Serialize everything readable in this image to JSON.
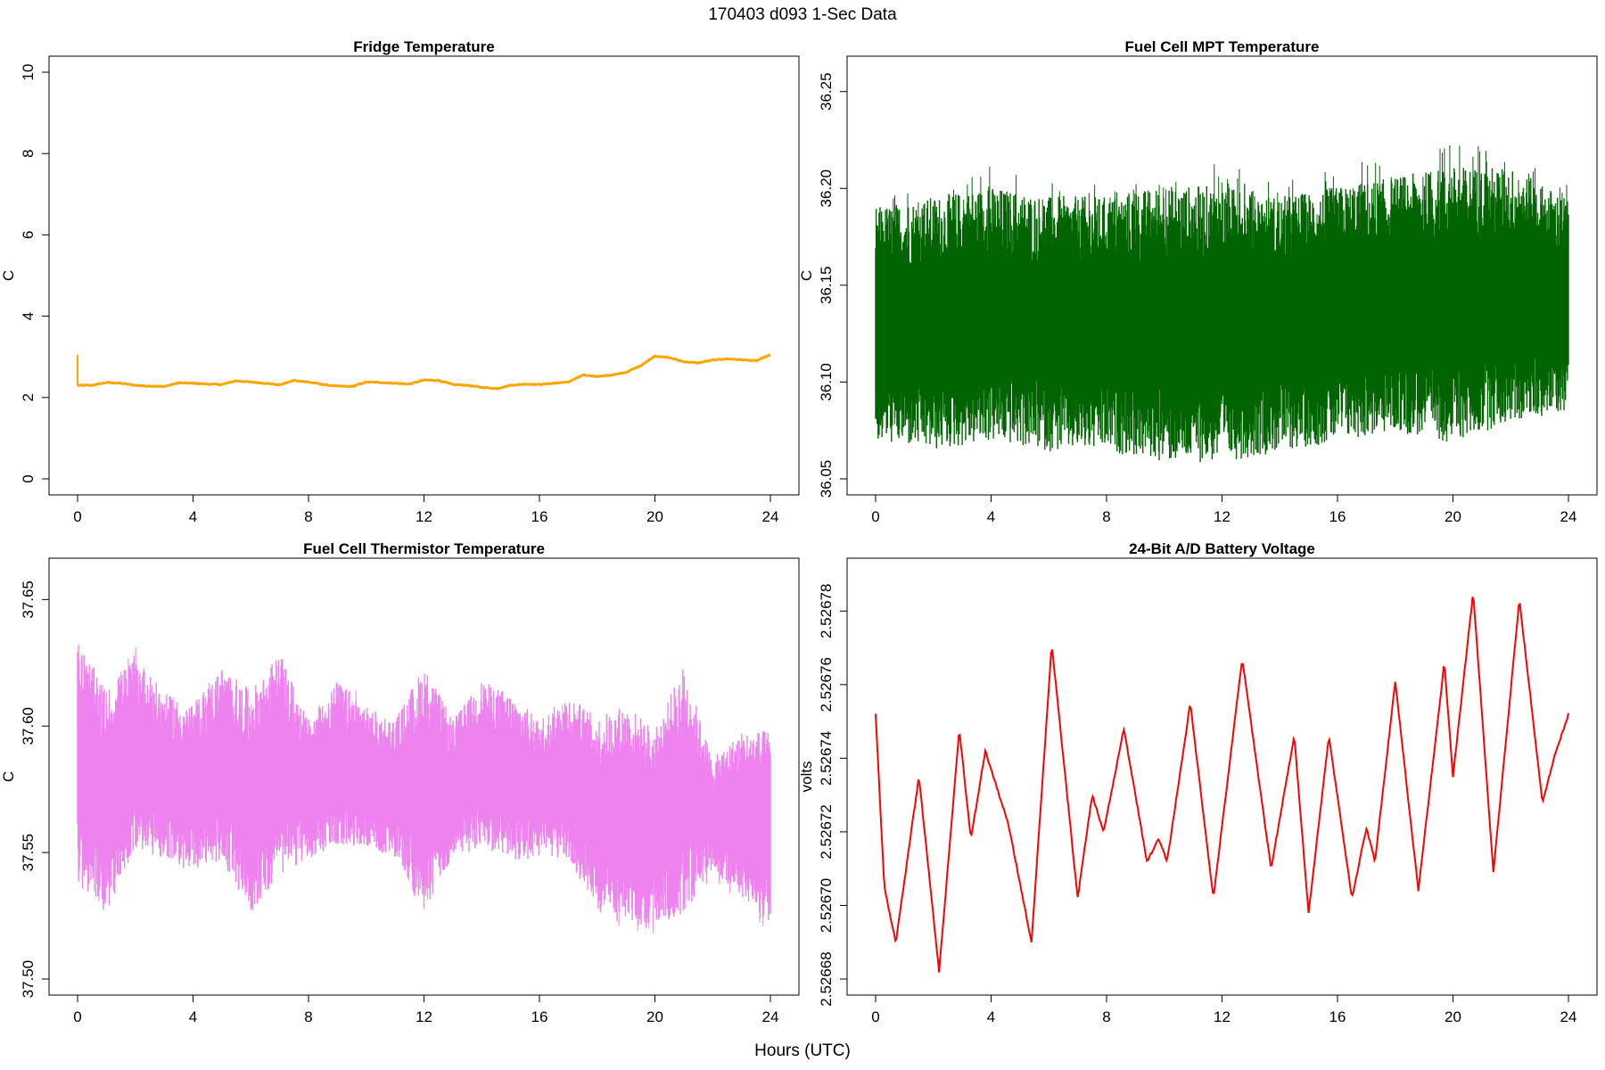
{
  "figure": {
    "title": "170403   d093   1-Sec Data",
    "xlabel": "Hours (UTC)"
  },
  "chart_data": [
    {
      "type": "line",
      "title": "Fridge Temperature",
      "xlabel": "",
      "ylabel": "C",
      "xlim": [
        0,
        24
      ],
      "ylim": [
        0,
        10
      ],
      "xticks": [
        "0",
        "4",
        "8",
        "12",
        "16",
        "20",
        "24"
      ],
      "yticks": [
        "0",
        "2",
        "4",
        "6",
        "8",
        "10"
      ],
      "color": "#ffa500",
      "series": [
        {
          "x": [
            0,
            0.5,
            1,
            1.5,
            2,
            2.5,
            3,
            3.5,
            4,
            4.5,
            5,
            5.5,
            6,
            6.5,
            7,
            7.5,
            8,
            8.5,
            9,
            9.5,
            10,
            10.5,
            11,
            11.5,
            12,
            12.5,
            13,
            13.5,
            14,
            14.5,
            15,
            15.5,
            16,
            16.5,
            17,
            17.5,
            18,
            18.5,
            19,
            19.5,
            20,
            20.5,
            21,
            21.5,
            22,
            22.5,
            23,
            23.5,
            24
          ],
          "y": [
            2.3,
            2.3,
            2.37,
            2.35,
            2.3,
            2.28,
            2.27,
            2.36,
            2.35,
            2.33,
            2.32,
            2.41,
            2.38,
            2.35,
            2.31,
            2.42,
            2.38,
            2.32,
            2.28,
            2.27,
            2.38,
            2.37,
            2.35,
            2.33,
            2.43,
            2.42,
            2.32,
            2.3,
            2.25,
            2.22,
            2.3,
            2.33,
            2.32,
            2.35,
            2.38,
            2.55,
            2.52,
            2.55,
            2.62,
            2.78,
            3.02,
            2.98,
            2.88,
            2.85,
            2.92,
            2.95,
            2.93,
            2.9,
            3.05
          ]
        }
      ]
    },
    {
      "type": "line",
      "title": "Fuel Cell MPT Temperature",
      "xlabel": "",
      "ylabel": "C",
      "xlim": [
        0,
        24
      ],
      "ylim": [
        36.05,
        36.26
      ],
      "xticks": [
        "0",
        "4",
        "8",
        "12",
        "16",
        "20",
        "24"
      ],
      "yticks": [
        "36.05",
        "36.10",
        "36.15",
        "36.20",
        "36.25"
      ],
      "color": "#006400",
      "series": [
        {
          "x": [
            0,
            2,
            4,
            6,
            8,
            10,
            12,
            14,
            16,
            18,
            20,
            22,
            24
          ],
          "y_min": [
            36.08,
            36.08,
            36.09,
            36.08,
            36.08,
            36.07,
            36.08,
            36.08,
            36.09,
            36.09,
            36.09,
            36.1,
            36.1
          ],
          "y_max": [
            36.19,
            36.2,
            36.21,
            36.2,
            36.2,
            36.2,
            36.21,
            36.2,
            36.21,
            36.21,
            36.22,
            36.22,
            36.2
          ],
          "y_mean": [
            36.13,
            36.13,
            36.135,
            36.13,
            36.13,
            36.13,
            36.13,
            36.13,
            36.135,
            36.14,
            36.14,
            36.145,
            36.14
          ]
        }
      ]
    },
    {
      "type": "line",
      "title": "Fuel Cell Thermistor Temperature",
      "xlabel": "",
      "ylabel": "C",
      "xlim": [
        0,
        24
      ],
      "ylim": [
        37.5,
        37.66
      ],
      "xticks": [
        "0",
        "4",
        "8",
        "12",
        "16",
        "20",
        "24"
      ],
      "yticks": [
        "37.50",
        "37.55",
        "37.60",
        "37.65"
      ],
      "color": "#ee82ee",
      "series": [
        {
          "x": [
            0,
            1,
            2,
            3,
            4,
            5,
            6,
            7,
            8,
            9,
            10,
            11,
            12,
            13,
            14,
            15,
            16,
            17,
            18,
            19,
            20,
            21,
            22,
            23,
            24
          ],
          "y_min": [
            37.54,
            37.53,
            37.56,
            37.55,
            37.55,
            37.55,
            37.53,
            37.55,
            37.55,
            37.56,
            37.56,
            37.55,
            37.53,
            37.55,
            37.56,
            37.55,
            37.55,
            37.55,
            37.53,
            37.52,
            37.52,
            37.53,
            37.54,
            37.53,
            37.52
          ],
          "y_max": [
            37.63,
            37.61,
            37.63,
            37.61,
            37.61,
            37.62,
            37.61,
            37.63,
            37.6,
            37.62,
            37.61,
            37.6,
            37.62,
            37.6,
            37.62,
            37.61,
            37.6,
            37.61,
            37.6,
            37.6,
            37.59,
            37.62,
            37.58,
            37.59,
            37.59
          ],
          "y_mean": [
            37.585,
            37.57,
            37.59,
            37.58,
            37.575,
            37.585,
            37.57,
            37.585,
            37.575,
            37.585,
            37.58,
            37.575,
            37.575,
            37.575,
            37.585,
            37.58,
            37.575,
            37.58,
            37.565,
            37.565,
            37.56,
            37.575,
            37.565,
            37.565,
            37.56
          ]
        }
      ]
    },
    {
      "type": "line",
      "title": "24-Bit A/D Battery Voltage",
      "xlabel": "",
      "ylabel": "volts",
      "xlim": [
        0,
        24
      ],
      "ylim": [
        2.52668,
        2.52679
      ],
      "xticks": [
        "0",
        "4",
        "8",
        "12",
        "16",
        "20",
        "24"
      ],
      "yticks": [
        "2.52668",
        "2.52670",
        "2.52672",
        "2.52674",
        "2.52676",
        "2.52678"
      ],
      "color": "#ff0000",
      "series": [
        {
          "x": [
            0,
            0.3,
            0.7,
            1.5,
            2.2,
            2.9,
            3.3,
            3.8,
            4.6,
            5.4,
            6.1,
            7.0,
            7.5,
            7.9,
            8.6,
            9.4,
            9.8,
            10.1,
            10.9,
            11.7,
            12.7,
            13.7,
            14.5,
            15.0,
            15.7,
            16.5,
            17.0,
            17.3,
            18.0,
            18.8,
            19.7,
            20.0,
            20.7,
            21.4,
            22.3,
            23.1,
            23.5,
            24.0
          ],
          "y": [
            2.526752,
            2.526705,
            2.52669,
            2.526735,
            2.526682,
            2.526748,
            2.526718,
            2.526742,
            2.526722,
            2.52669,
            2.526771,
            2.526702,
            2.52673,
            2.52672,
            2.526748,
            2.526712,
            2.526718,
            2.526712,
            2.526755,
            2.526702,
            2.526767,
            2.52671,
            2.526746,
            2.526698,
            2.526746,
            2.526702,
            2.526721,
            2.526712,
            2.526761,
            2.526704,
            2.526766,
            2.526735,
            2.526785,
            2.526709,
            2.526783,
            2.526728,
            2.52674,
            2.526752
          ]
        }
      ]
    }
  ]
}
